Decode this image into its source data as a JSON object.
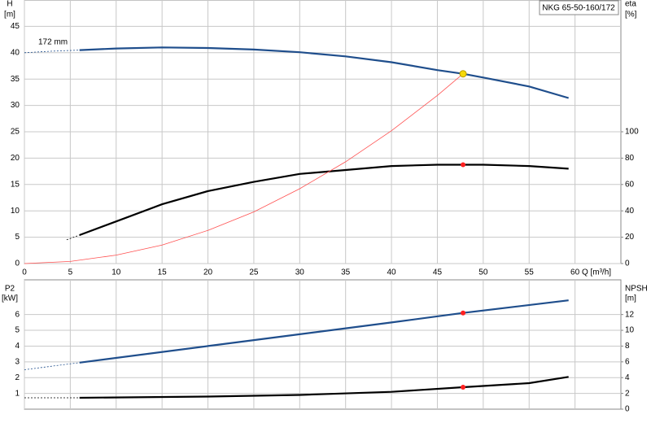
{
  "chart_data": [
    {
      "type": "line",
      "title": "NKG 65-50-160/172",
      "ylabel": "H",
      "yunit": "[m]",
      "y2label": "eta",
      "y2unit": "[%]",
      "xlabel": "Q [m³/h]",
      "annotation": "172 mm",
      "xlim": [
        0,
        65
      ],
      "xticks": [
        0,
        5,
        10,
        15,
        20,
        25,
        30,
        35,
        40,
        45,
        50,
        55,
        60
      ],
      "ylim": [
        0,
        50
      ],
      "yticks": [
        0,
        5,
        10,
        15,
        20,
        25,
        30,
        35,
        40,
        45
      ],
      "y2lim": [
        0,
        200
      ],
      "y2ticks": [
        0,
        20,
        40,
        60,
        80,
        100
      ],
      "grid": true,
      "show_xtick_labels": true,
      "series": [
        {
          "color": "#1f4e8c",
          "dashed": true,
          "axis": "y",
          "x": [
            0,
            3,
            6
          ],
          "values": [
            40,
            40.3,
            40.5
          ]
        },
        {
          "color": "#1f4e8c",
          "dashed": false,
          "axis": "y",
          "x": [
            6,
            10,
            15,
            20,
            25,
            30,
            35,
            40,
            45,
            47.8,
            50,
            55,
            59.3
          ],
          "values": [
            40.5,
            40.8,
            41.0,
            40.9,
            40.6,
            40.1,
            39.3,
            38.2,
            36.7,
            36.0,
            35.3,
            33.6,
            31.4
          ]
        },
        {
          "color": "#000000",
          "dashed": true,
          "axis": "y2",
          "x": [
            4.6,
            6
          ],
          "values": [
            18,
            21.6
          ]
        },
        {
          "color": "#000000",
          "dashed": false,
          "axis": "y2",
          "x": [
            6,
            10,
            15,
            20,
            25,
            30,
            35,
            40,
            45,
            47.8,
            50,
            55,
            59.3
          ],
          "values": [
            21.6,
            32,
            45,
            55,
            62,
            68,
            71,
            74,
            75,
            75,
            75,
            74,
            72
          ]
        },
        {
          "color": "#ff5050",
          "dashed": false,
          "thin": true,
          "axis": "y",
          "x": [
            0,
            5,
            10,
            15,
            20,
            25,
            30,
            35,
            40,
            45,
            47.8
          ],
          "values": [
            0,
            0.4,
            1.6,
            3.5,
            6.3,
            9.8,
            14.2,
            19.3,
            25.2,
            31.9,
            36
          ]
        }
      ],
      "points": [
        {
          "x": 47.8,
          "y": 36,
          "axis": "y",
          "color": "#f5d90a"
        },
        {
          "x": 47.8,
          "y": 75,
          "axis": "y2",
          "color": "#ff2020"
        }
      ]
    },
    {
      "type": "line",
      "ylabel": "P2",
      "yunit": "[kW]",
      "y2label": "NPSH",
      "y2unit": "[m]",
      "xlim": [
        0,
        65
      ],
      "xticks": [
        0,
        5,
        10,
        15,
        20,
        25,
        30,
        35,
        40,
        45,
        50,
        55,
        60
      ],
      "show_xtick_labels": false,
      "ylim": [
        0,
        8.2
      ],
      "yticks": [
        1,
        2,
        3,
        4,
        5,
        6
      ],
      "y2lim": [
        0,
        16.4
      ],
      "y2ticks": [
        0,
        2,
        4,
        6,
        8,
        10,
        12
      ],
      "grid": true,
      "series": [
        {
          "color": "#1f4e8c",
          "dashed": true,
          "axis": "y",
          "x": [
            0,
            6
          ],
          "values": [
            2.5,
            2.95
          ]
        },
        {
          "color": "#1f4e8c",
          "dashed": false,
          "axis": "y",
          "x": [
            6,
            20,
            30,
            40,
            47.8,
            59.3
          ],
          "values": [
            2.95,
            4.0,
            4.75,
            5.5,
            6.1,
            6.9
          ]
        },
        {
          "color": "#000000",
          "dashed": true,
          "axis": "y2",
          "x": [
            0,
            6
          ],
          "values": [
            1.44,
            1.44
          ]
        },
        {
          "color": "#000000",
          "dashed": false,
          "axis": "y2",
          "x": [
            6,
            20,
            30,
            40,
            47.8,
            55,
            59.3
          ],
          "values": [
            1.44,
            1.6,
            1.8,
            2.2,
            2.78,
            3.3,
            4.1
          ]
        }
      ],
      "points": [
        {
          "x": 47.8,
          "y": 6.1,
          "axis": "y",
          "color": "#ff2020"
        },
        {
          "x": 47.8,
          "y": 2.78,
          "axis": "y2",
          "color": "#ff2020"
        }
      ]
    }
  ]
}
